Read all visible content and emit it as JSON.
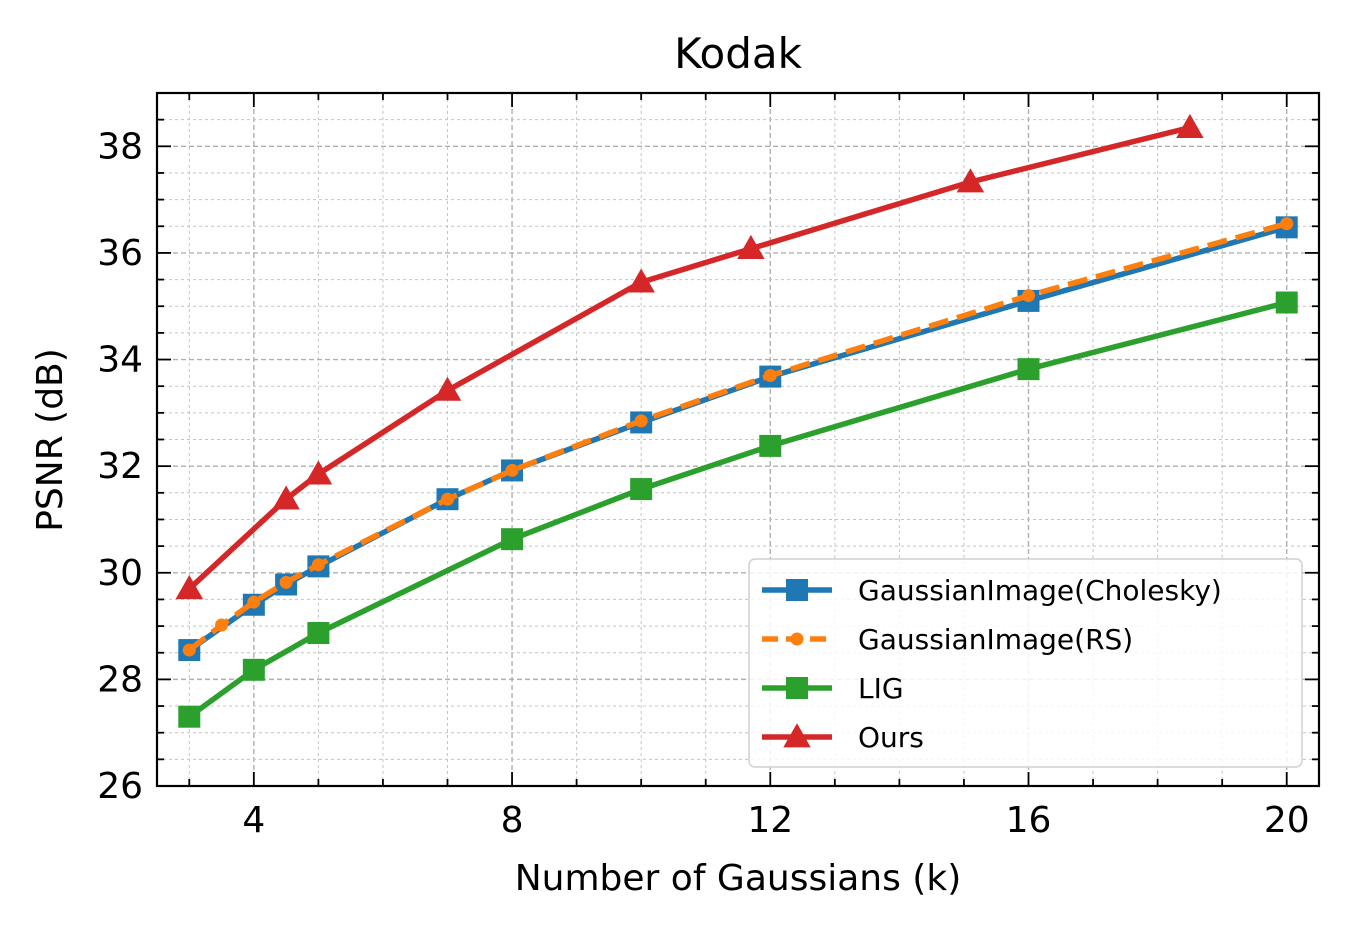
{
  "chart_data": {
    "type": "line",
    "title": "Kodak",
    "xlabel": "Number of Gaussians (k)",
    "ylabel": "PSNR (dB)",
    "xlim": [
      2.5,
      20.5
    ],
    "ylim": [
      26,
      39
    ],
    "xticks": [
      4,
      8,
      12,
      16,
      20
    ],
    "yticks": [
      26,
      28,
      30,
      32,
      34,
      36,
      38
    ],
    "x_minor_step": 1,
    "y_minor_step": 0.5,
    "grid": true,
    "legend_position": "lower-right",
    "series": [
      {
        "name": "GaussianImage(Cholesky)",
        "color": "#1f77b4",
        "marker": "square",
        "line_style": "solid",
        "x": [
          3,
          4,
          4.5,
          5,
          7,
          8,
          10,
          12,
          16,
          20
        ],
        "y": [
          28.55,
          29.4,
          29.78,
          30.12,
          31.38,
          31.92,
          32.82,
          33.68,
          35.1,
          36.48
        ]
      },
      {
        "name": "GaussianImage(RS)",
        "color": "#ff7f0e",
        "marker": "circle",
        "line_style": "dashed",
        "x": [
          3,
          3.5,
          4,
          4.5,
          5,
          7,
          8,
          10,
          12,
          16,
          20
        ],
        "y": [
          28.55,
          29.02,
          29.45,
          29.82,
          30.15,
          31.38,
          31.92,
          32.85,
          33.7,
          35.2,
          36.55
        ]
      },
      {
        "name": "LIG",
        "color": "#2ca02c",
        "marker": "square",
        "line_style": "solid",
        "x": [
          3,
          4,
          5,
          8,
          10,
          12,
          16,
          20
        ],
        "y": [
          27.3,
          28.18,
          28.87,
          30.63,
          31.57,
          32.38,
          33.82,
          35.07
        ]
      },
      {
        "name": "Ours",
        "color": "#d62728",
        "marker": "triangle",
        "line_style": "solid",
        "x": [
          3,
          4.5,
          5,
          7,
          10,
          11.7,
          15.1,
          18.5
        ],
        "y": [
          29.7,
          31.38,
          31.85,
          33.42,
          35.45,
          36.08,
          37.33,
          38.35
        ]
      }
    ]
  }
}
